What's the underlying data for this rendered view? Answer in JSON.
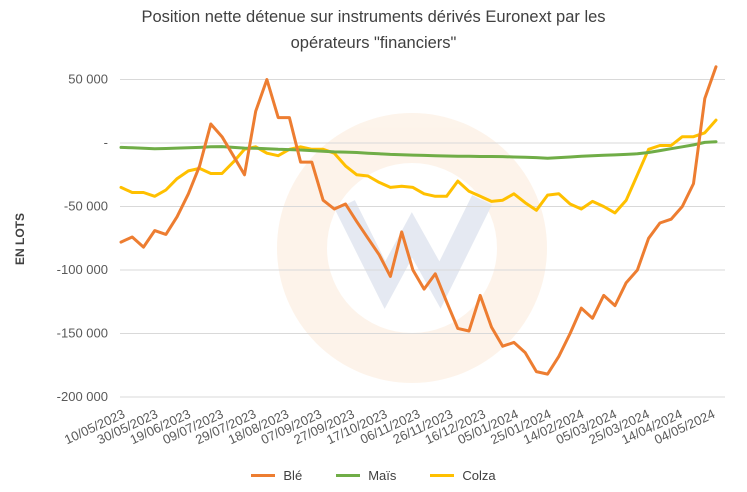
{
  "chart_data": {
    "type": "line",
    "title": "Position nette détenue sur instruments dérivés Euronext par les opérateurs \"financiers\"",
    "title_lines": [
      "Position nette détenue sur instruments dérivés Euronext par les",
      "opérateurs \"financiers\""
    ],
    "ylabel": "EN LOTS",
    "xlabel": "",
    "ylim": [
      -200000,
      60000
    ],
    "yticks": [
      50000,
      0,
      -50000,
      -100000,
      -150000,
      -200000
    ],
    "ytick_labels": [
      "50 000",
      "-",
      "-50 000",
      "-100 000",
      "-150 000",
      "-200 000"
    ],
    "x_tick_labels": [
      "10/05/2023",
      "30/05/2023",
      "19/06/2023",
      "09/07/2023",
      "29/07/2023",
      "18/08/2023",
      "07/09/2023",
      "27/09/2023",
      "17/10/2023",
      "06/11/2023",
      "26/11/2023",
      "16/12/2023",
      "05/01/2024",
      "25/01/2024",
      "14/02/2024",
      "05/03/2024",
      "25/03/2024",
      "14/04/2024",
      "04/05/2024"
    ],
    "grid": true,
    "legend": "bottom",
    "series": [
      {
        "name": "Blé",
        "color": "#ED7D31",
        "values": [
          -78000,
          -74000,
          -82000,
          -69000,
          -72000,
          -58000,
          -40000,
          -18000,
          15000,
          5000,
          -10000,
          -25000,
          25000,
          50000,
          20000,
          20000,
          -15000,
          -15000,
          -45000,
          -52000,
          -48000,
          -62000,
          -75000,
          -88000,
          -105000,
          -70000,
          -100000,
          -115000,
          -103000,
          -125000,
          -146000,
          -148000,
          -120000,
          -145000,
          -160000,
          -157000,
          -165000,
          -180000,
          -182000,
          -168000,
          -150000,
          -130000,
          -138000,
          -120000,
          -128000,
          -110000,
          -100000,
          -75000,
          -63000,
          -60000,
          -50000,
          -32000,
          35000,
          60000
        ]
      },
      {
        "name": "Maïs",
        "color": "#70AD47",
        "values": [
          -3500,
          -3800,
          -4200,
          -4500,
          -4300,
          -4000,
          -3800,
          -3500,
          -3000,
          -2800,
          -3500,
          -4000,
          -4200,
          -4500,
          -5000,
          -5200,
          -5500,
          -6000,
          -6500,
          -7000,
          -7200,
          -7500,
          -8000,
          -8500,
          -9000,
          -9200,
          -9500,
          -9800,
          -10000,
          -10200,
          -10400,
          -10500,
          -10600,
          -10600,
          -10700,
          -11000,
          -11200,
          -11500,
          -12000,
          -11500,
          -11000,
          -10500,
          -10000,
          -9600,
          -9400,
          -9000,
          -8500,
          -7500,
          -6000,
          -4500,
          -3000,
          -1500,
          500,
          1000
        ]
      },
      {
        "name": "Colza",
        "color": "#FFC000",
        "values": [
          -35000,
          -39000,
          -39000,
          -42000,
          -37000,
          -28000,
          -22000,
          -20000,
          -24000,
          -24000,
          -15000,
          -5000,
          -3000,
          -8000,
          -10000,
          -5000,
          -3000,
          -5000,
          -5000,
          -8000,
          -18000,
          -25000,
          -26000,
          -31000,
          -35000,
          -34000,
          -35000,
          -40000,
          -42000,
          -42000,
          -30000,
          -38000,
          -42000,
          -46000,
          -45000,
          -40000,
          -47000,
          -53000,
          -41000,
          -40000,
          -48000,
          -52000,
          -46000,
          -50000,
          -55000,
          -45000,
          -25000,
          -5000,
          -2000,
          -2000,
          5000,
          5000,
          8000,
          18000
        ]
      }
    ]
  }
}
